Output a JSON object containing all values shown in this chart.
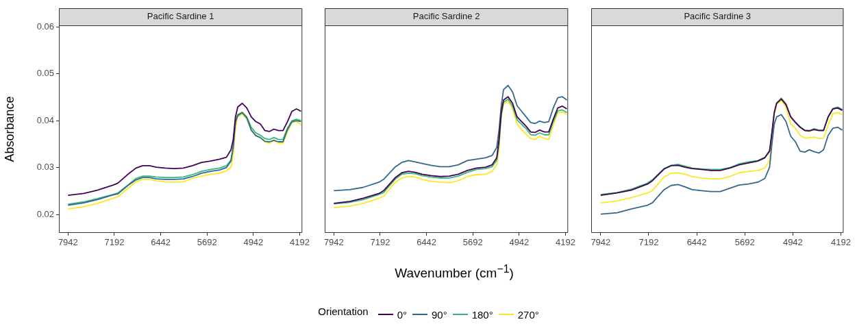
{
  "chart_data": [
    {
      "type": "line",
      "title": "Pacific Sardine 1",
      "ylabel": "Absorbance",
      "legend": "bottom",
      "legend_title": "Orientation",
      "tick_labels": true,
      "x": [
        7942,
        7686,
        7466,
        7210,
        7136,
        6953,
        6843,
        6734,
        6624,
        6514,
        6367,
        6221,
        6074,
        5928,
        5781,
        5635,
        5488,
        5379,
        5305,
        5269,
        5232,
        5195,
        5122,
        5049,
        4976,
        4902,
        4829,
        4756,
        4683,
        4610,
        4536,
        4463,
        4390,
        4317,
        4243,
        4170
      ],
      "xlim": [
        8090,
        4150
      ],
      "xticks": [
        7942,
        7192,
        6442,
        5692,
        4942,
        4192
      ],
      "ylim": [
        0.0161,
        0.0603
      ],
      "yticks": [
        0.02,
        0.03,
        0.04,
        0.05,
        0.06
      ],
      "series": [
        {
          "name": "0°",
          "color": "#440154",
          "values": [
            0.0241,
            0.0245,
            0.0252,
            0.0263,
            0.0267,
            0.0288,
            0.0299,
            0.0304,
            0.0304,
            0.0301,
            0.0299,
            0.0298,
            0.0299,
            0.0304,
            0.0311,
            0.0314,
            0.0318,
            0.0322,
            0.0338,
            0.0359,
            0.0408,
            0.0429,
            0.0437,
            0.0427,
            0.0408,
            0.0398,
            0.0393,
            0.0379,
            0.0377,
            0.0382,
            0.0379,
            0.0379,
            0.0398,
            0.042,
            0.0425,
            0.042
          ]
        },
        {
          "name": "90°",
          "color": "#31688e",
          "values": [
            0.022,
            0.0225,
            0.0232,
            0.0242,
            0.0244,
            0.0264,
            0.0274,
            0.0279,
            0.0279,
            0.0276,
            0.0275,
            0.0275,
            0.0276,
            0.0281,
            0.0288,
            0.0292,
            0.0295,
            0.03,
            0.0314,
            0.0343,
            0.0397,
            0.0411,
            0.0417,
            0.0406,
            0.038,
            0.0368,
            0.0364,
            0.0356,
            0.0355,
            0.0358,
            0.0355,
            0.0355,
            0.0381,
            0.0398,
            0.04,
            0.0398
          ]
        },
        {
          "name": "180°",
          "color": "#35b779",
          "values": [
            0.0222,
            0.0227,
            0.0234,
            0.0243,
            0.0246,
            0.0265,
            0.0277,
            0.0282,
            0.0282,
            0.028,
            0.0279,
            0.0279,
            0.028,
            0.0285,
            0.0292,
            0.0296,
            0.0299,
            0.0304,
            0.0316,
            0.0345,
            0.0398,
            0.0413,
            0.0418,
            0.0408,
            0.0386,
            0.0374,
            0.0369,
            0.0362,
            0.036,
            0.0364,
            0.036,
            0.036,
            0.0384,
            0.04,
            0.0403,
            0.04
          ]
        },
        {
          "name": "270°",
          "color": "#fde725",
          "values": [
            0.0212,
            0.0217,
            0.0224,
            0.0235,
            0.0238,
            0.0258,
            0.027,
            0.0275,
            0.0275,
            0.0272,
            0.027,
            0.0269,
            0.027,
            0.0277,
            0.0282,
            0.0286,
            0.0288,
            0.0293,
            0.0301,
            0.0326,
            0.0384,
            0.0408,
            0.0414,
            0.0403,
            0.0379,
            0.0369,
            0.0364,
            0.0355,
            0.0352,
            0.0357,
            0.0352,
            0.0352,
            0.0376,
            0.0396,
            0.0398,
            0.0391
          ]
        }
      ]
    },
    {
      "type": "line",
      "title": "Pacific Sardine 2",
      "xlabel": "Wavenumber (cm$^{−1}$)",
      "tick_labels": "x",
      "x": [
        7942,
        7686,
        7466,
        7210,
        7136,
        6953,
        6843,
        6734,
        6624,
        6514,
        6367,
        6221,
        6074,
        5928,
        5781,
        5635,
        5488,
        5379,
        5305,
        5269,
        5232,
        5195,
        5122,
        5049,
        4976,
        4902,
        4829,
        4756,
        4683,
        4610,
        4536,
        4463,
        4390,
        4317,
        4243,
        4170
      ],
      "xlim": [
        8090,
        4150
      ],
      "xticks": [
        7942,
        7192,
        6442,
        5692,
        4942,
        4192
      ],
      "ylim": [
        0.0161,
        0.0603
      ],
      "yticks": [
        0.02,
        0.03,
        0.04,
        0.05,
        0.06
      ],
      "series": [
        {
          "color": "#440154",
          "values": [
            0.0224,
            0.0228,
            0.0235,
            0.0245,
            0.0251,
            0.0278,
            0.0289,
            0.0292,
            0.029,
            0.0286,
            0.0283,
            0.0281,
            0.0282,
            0.0286,
            0.0294,
            0.0299,
            0.0301,
            0.0306,
            0.0321,
            0.0359,
            0.0417,
            0.0444,
            0.0451,
            0.0437,
            0.0408,
            0.0398,
            0.0388,
            0.0376,
            0.0375,
            0.038,
            0.0376,
            0.0376,
            0.0403,
            0.0427,
            0.0431,
            0.0425
          ]
        },
        {
          "color": "#31688e",
          "values": [
            0.0251,
            0.0253,
            0.0258,
            0.0269,
            0.0275,
            0.0301,
            0.0311,
            0.0315,
            0.0312,
            0.0309,
            0.0305,
            0.0302,
            0.0302,
            0.0306,
            0.0315,
            0.0318,
            0.0321,
            0.0326,
            0.0343,
            0.0379,
            0.0432,
            0.0466,
            0.0475,
            0.0461,
            0.0432,
            0.042,
            0.0408,
            0.0396,
            0.0394,
            0.0399,
            0.0396,
            0.0398,
            0.0427,
            0.0449,
            0.0451,
            0.0444
          ]
        },
        {
          "color": "#35b779",
          "values": [
            0.0223,
            0.0226,
            0.0232,
            0.0243,
            0.0247,
            0.0275,
            0.0286,
            0.0288,
            0.0287,
            0.0283,
            0.028,
            0.0278,
            0.0278,
            0.0282,
            0.029,
            0.0296,
            0.0298,
            0.0302,
            0.0316,
            0.035,
            0.0413,
            0.0439,
            0.0446,
            0.0431,
            0.0402,
            0.0392,
            0.0383,
            0.037,
            0.0369,
            0.0374,
            0.037,
            0.037,
            0.0398,
            0.0421,
            0.0423,
            0.0417
          ]
        },
        {
          "color": "#fde725",
          "values": [
            0.0215,
            0.0218,
            0.0224,
            0.0235,
            0.0239,
            0.0268,
            0.0278,
            0.0281,
            0.028,
            0.0275,
            0.0271,
            0.0269,
            0.0268,
            0.0272,
            0.0281,
            0.0285,
            0.0286,
            0.0292,
            0.0306,
            0.034,
            0.0408,
            0.0434,
            0.0443,
            0.0425,
            0.0393,
            0.0381,
            0.0371,
            0.0362,
            0.036,
            0.0367,
            0.0362,
            0.036,
            0.0391,
            0.0417,
            0.0418,
            0.0413
          ]
        }
      ]
    },
    {
      "type": "line",
      "title": "Pacific Sardine 3",
      "tick_labels": "x",
      "x": [
        7942,
        7686,
        7466,
        7210,
        7136,
        6953,
        6843,
        6734,
        6624,
        6514,
        6367,
        6221,
        6074,
        5928,
        5781,
        5635,
        5488,
        5379,
        5305,
        5269,
        5232,
        5195,
        5122,
        5049,
        4976,
        4902,
        4829,
        4756,
        4683,
        4610,
        4536,
        4463,
        4390,
        4317,
        4243,
        4170
      ],
      "xlim": [
        8090,
        4150
      ],
      "xticks": [
        7942,
        7192,
        6442,
        5692,
        4942,
        4192
      ],
      "ylim": [
        0.0161,
        0.0603
      ],
      "yticks": [
        0.02,
        0.03,
        0.04,
        0.05,
        0.06
      ],
      "series": [
        {
          "color": "#440154",
          "values": [
            0.0241,
            0.0246,
            0.0252,
            0.0265,
            0.0272,
            0.0297,
            0.0304,
            0.0305,
            0.0301,
            0.0298,
            0.0296,
            0.0294,
            0.0294,
            0.0299,
            0.0306,
            0.031,
            0.0314,
            0.0321,
            0.0335,
            0.0374,
            0.0417,
            0.0437,
            0.0446,
            0.0434,
            0.0408,
            0.0396,
            0.0386,
            0.0379,
            0.0378,
            0.0381,
            0.0379,
            0.0379,
            0.0408,
            0.0425,
            0.0427,
            0.0422
          ]
        },
        {
          "color": "#31688e",
          "values": [
            0.0201,
            0.0204,
            0.0212,
            0.022,
            0.0225,
            0.0253,
            0.0262,
            0.0264,
            0.0259,
            0.0253,
            0.0251,
            0.0249,
            0.0249,
            0.0256,
            0.0263,
            0.0265,
            0.0269,
            0.0277,
            0.0301,
            0.035,
            0.0393,
            0.0408,
            0.0413,
            0.0398,
            0.0367,
            0.0355,
            0.0335,
            0.0333,
            0.0338,
            0.0334,
            0.0331,
            0.0338,
            0.0369,
            0.0384,
            0.0386,
            0.038
          ]
        },
        {
          "color": "#35b779",
          "values": [
            0.0243,
            0.0247,
            0.0254,
            0.0267,
            0.0274,
            0.0298,
            0.0305,
            0.0307,
            0.0303,
            0.0299,
            0.0297,
            0.0296,
            0.0296,
            0.03,
            0.0308,
            0.0312,
            0.0315,
            0.0322,
            0.0337,
            0.0375,
            0.0419,
            0.0438,
            0.0448,
            0.0436,
            0.0409,
            0.0397,
            0.0387,
            0.038,
            0.0379,
            0.0383,
            0.038,
            0.038,
            0.0409,
            0.0426,
            0.0429,
            0.0424
          ]
        },
        {
          "color": "#fde725",
          "values": [
            0.0225,
            0.0229,
            0.0236,
            0.0246,
            0.0251,
            0.028,
            0.0288,
            0.0289,
            0.0286,
            0.0281,
            0.0278,
            0.0276,
            0.0276,
            0.0281,
            0.0289,
            0.0292,
            0.0294,
            0.0299,
            0.0316,
            0.0364,
            0.0413,
            0.0434,
            0.0443,
            0.0429,
            0.0393,
            0.0384,
            0.0369,
            0.0363,
            0.0364,
            0.0365,
            0.0362,
            0.0363,
            0.0391,
            0.0415,
            0.0417,
            0.0413
          ]
        }
      ]
    }
  ]
}
